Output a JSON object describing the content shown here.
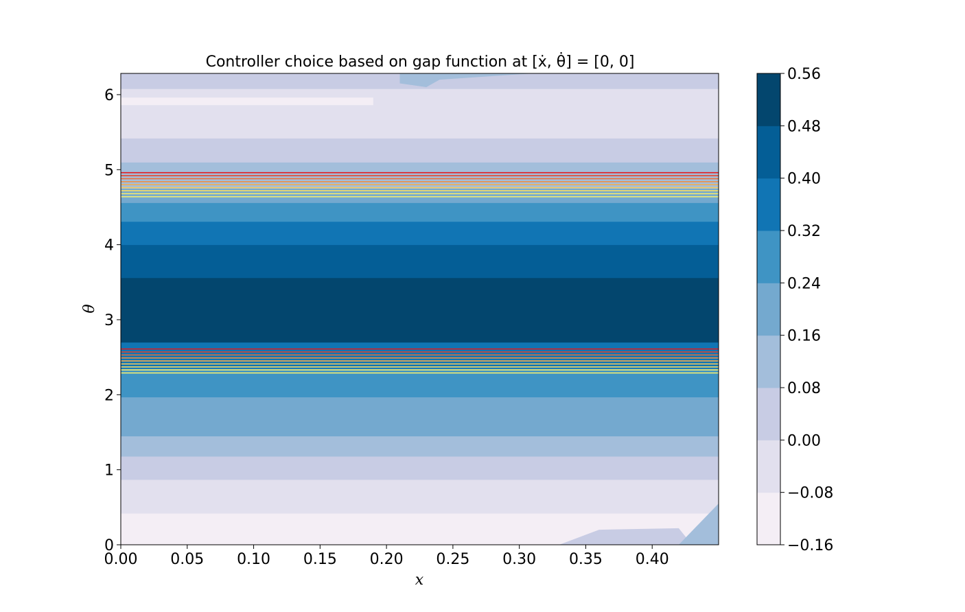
{
  "chart_data": {
    "type": "heatmap",
    "title": "Controller choice based on gap function at [ẋ, θ̇] = [0, 0]",
    "xlabel": "x",
    "ylabel": "θ",
    "xlim": [
      0.0,
      0.45
    ],
    "ylim": [
      0.0,
      6.283
    ],
    "x_ticks": [
      0.0,
      0.05,
      0.1,
      0.15,
      0.2,
      0.25,
      0.3,
      0.35,
      0.4
    ],
    "x_tick_labels": [
      "0.00",
      "0.05",
      "0.10",
      "0.15",
      "0.20",
      "0.25",
      "0.30",
      "0.35",
      "0.40"
    ],
    "y_ticks": [
      0,
      1,
      2,
      3,
      4,
      5,
      6
    ],
    "y_tick_labels": [
      "0",
      "1",
      "2",
      "3",
      "4",
      "5",
      "6"
    ],
    "colorbar": {
      "levels": [
        -0.16,
        -0.08,
        0.0,
        0.08,
        0.16,
        0.24,
        0.32,
        0.4,
        0.48,
        0.56
      ],
      "tick_labels": [
        "−0.16",
        "−0.08",
        "0.00",
        "0.08",
        "0.16",
        "0.24",
        "0.32",
        "0.40",
        "0.48",
        "0.56"
      ],
      "colors": [
        "#f4eef5",
        "#e2e0ee",
        "#c8cce4",
        "#a3bedb",
        "#74a9cf",
        "#3f94c4",
        "#1175b4",
        "#045e96",
        "#03466e"
      ]
    },
    "bands": [
      {
        "theta_from": 0.0,
        "theta_to": 0.42,
        "level_index": 0
      },
      {
        "theta_from": 0.42,
        "theta_to": 0.87,
        "level_index": 1
      },
      {
        "theta_from": 0.87,
        "theta_to": 1.18,
        "level_index": 2
      },
      {
        "theta_from": 1.18,
        "theta_to": 1.45,
        "level_index": 3
      },
      {
        "theta_from": 1.45,
        "theta_to": 1.97,
        "level_index": 4
      },
      {
        "theta_from": 1.97,
        "theta_to": 2.35,
        "level_index": 5
      },
      {
        "theta_from": 2.35,
        "theta_to": 2.7,
        "level_index": 6
      },
      {
        "theta_from": 2.7,
        "theta_to": 3.56,
        "level_index": 8
      },
      {
        "theta_from": 3.56,
        "theta_to": 4.0,
        "level_index": 7
      },
      {
        "theta_from": 4.0,
        "theta_to": 4.31,
        "level_index": 6
      },
      {
        "theta_from": 4.31,
        "theta_to": 4.56,
        "level_index": 5
      },
      {
        "theta_from": 4.56,
        "theta_to": 4.75,
        "level_index": 4
      },
      {
        "theta_from": 4.75,
        "theta_to": 5.1,
        "level_index": 3
      },
      {
        "theta_from": 5.1,
        "theta_to": 5.42,
        "level_index": 2
      },
      {
        "theta_from": 5.42,
        "theta_to": 6.08,
        "level_index": 1
      },
      {
        "theta_from": 6.08,
        "theta_to": 6.283,
        "level_index": 2
      }
    ],
    "patches": [
      {
        "level_index": 0,
        "points": [
          [
            0.0,
            5.86
          ],
          [
            0.19,
            5.86
          ],
          [
            0.19,
            5.96
          ],
          [
            0.0,
            5.96
          ]
        ]
      },
      {
        "level_index": 3,
        "points": [
          [
            0.21,
            6.283
          ],
          [
            0.31,
            6.283
          ],
          [
            0.24,
            6.2
          ],
          [
            0.23,
            6.1
          ],
          [
            0.21,
            6.15
          ]
        ]
      },
      {
        "level_index": 1,
        "points": [
          [
            0.36,
            5.95
          ],
          [
            0.38,
            6.05
          ],
          [
            0.42,
            6.02
          ],
          [
            0.41,
            5.85
          ],
          [
            0.37,
            5.87
          ]
        ]
      },
      {
        "level_index": 1,
        "points": [
          [
            0.26,
            5.6
          ],
          [
            0.31,
            5.7
          ],
          [
            0.33,
            5.6
          ],
          [
            0.3,
            5.52
          ]
        ]
      },
      {
        "level_index": 0,
        "points": [
          [
            0.0,
            0.0
          ],
          [
            0.17,
            0.0
          ],
          [
            0.01,
            0.22
          ],
          [
            0.0,
            0.32
          ]
        ]
      },
      {
        "level_index": 2,
        "points": [
          [
            0.33,
            0.0
          ],
          [
            0.43,
            0.0
          ],
          [
            0.42,
            0.22
          ],
          [
            0.36,
            0.2
          ]
        ]
      },
      {
        "level_index": 3,
        "points": [
          [
            0.42,
            0.0
          ],
          [
            0.45,
            0.0
          ],
          [
            0.45,
            0.55
          ]
        ]
      }
    ],
    "boundary_lines": {
      "lower_group": [
        2.29,
        2.33,
        2.37,
        2.41,
        2.45,
        2.49,
        2.53,
        2.57,
        2.61
      ],
      "upper_group": [
        4.64,
        4.68,
        4.72,
        4.76,
        4.8,
        4.84,
        4.88,
        4.92,
        4.96
      ],
      "colors": [
        "#e31a1c",
        "#e6452a",
        "#eb6f38",
        "#ee8f45",
        "#f2ad51",
        "#f5c95c",
        "#f7dc66",
        "#f6ea6d",
        "#f4ee70"
      ]
    }
  }
}
